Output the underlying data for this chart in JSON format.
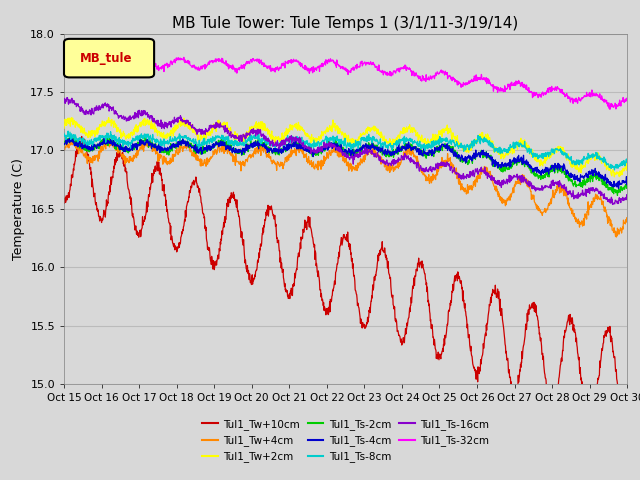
{
  "title": "MB Tule Tower: Tule Temps 1 (3/1/11-3/19/14)",
  "ylabel": "Temperature (C)",
  "ylim": [
    15.0,
    18.0
  ],
  "yticks": [
    15.0,
    15.5,
    16.0,
    16.5,
    17.0,
    17.5,
    18.0
  ],
  "xtick_labels": [
    "Oct 15",
    "Oct 16",
    "Oct 17",
    "Oct 18",
    "Oct 19",
    "Oct 20",
    "Oct 21",
    "Oct 22",
    "Oct 23",
    "Oct 24",
    "Oct 25",
    "Oct 26",
    "Oct 27",
    "Oct 28",
    "Oct 29",
    "Oct 30"
  ],
  "series": [
    {
      "name": "Tul1_Tw+10cm",
      "color": "#cc0000"
    },
    {
      "name": "Tul1_Tw+4cm",
      "color": "#ff8800"
    },
    {
      "name": "Tul1_Tw+2cm",
      "color": "#ffff00"
    },
    {
      "name": "Tul1_Ts-2cm",
      "color": "#00cc00"
    },
    {
      "name": "Tul1_Ts-4cm",
      "color": "#0000cc"
    },
    {
      "name": "Tul1_Ts-8cm",
      "color": "#00cccc"
    },
    {
      "name": "Tul1_Ts-16cm",
      "color": "#8800cc"
    },
    {
      "name": "Tul1_Ts-32cm",
      "color": "#ff00ff"
    }
  ],
  "legend_label": "MB_tule",
  "background_color": "#d8d8d8",
  "plot_bg_color": "#d8d8d8",
  "grid_color": "#bbbbbb"
}
